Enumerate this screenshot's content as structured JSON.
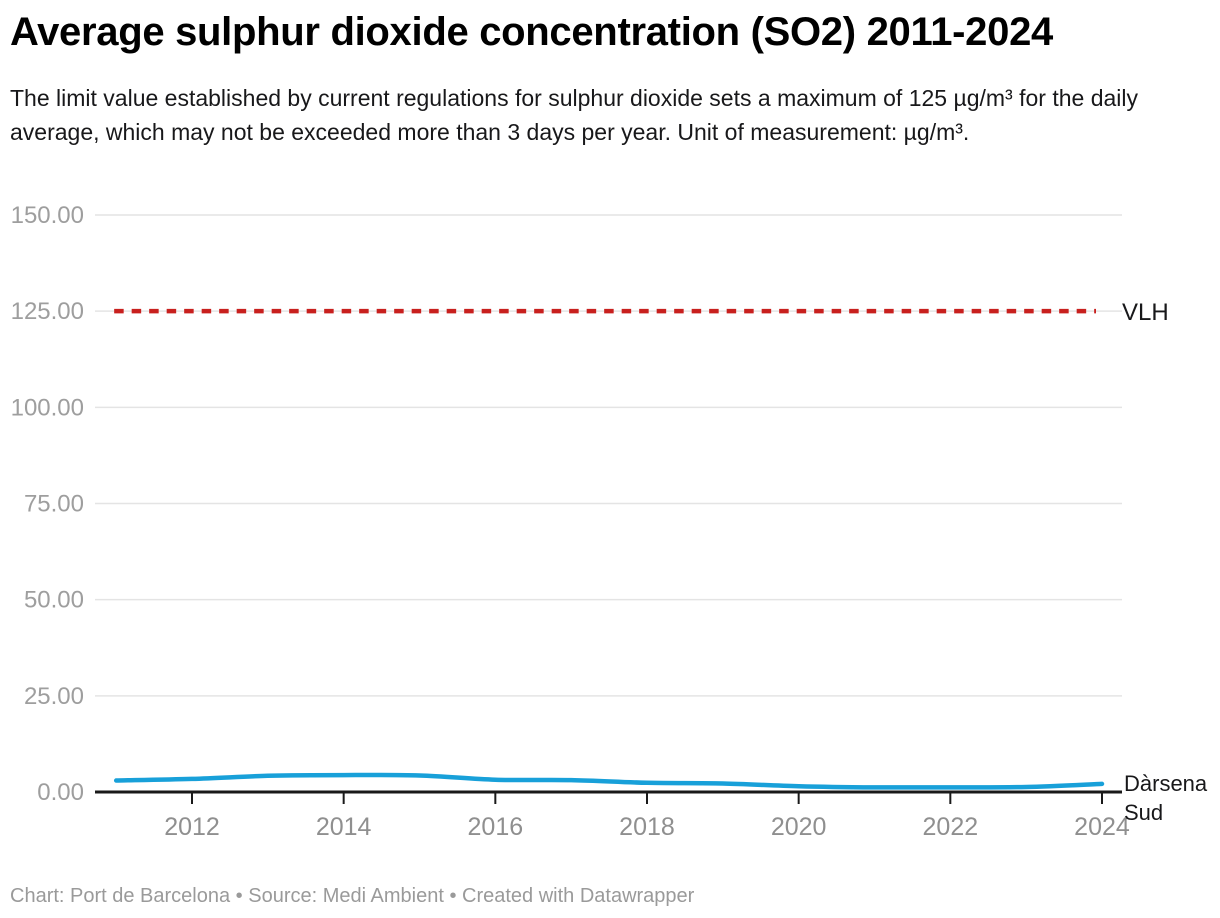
{
  "header": {
    "title": "Average sulphur dioxide concentration (SO2) 2011-2024",
    "description": "The limit value established by current regulations for sulphur dioxide sets a maximum of 125 µg/m³ for the daily average, which may not be exceeded more than 3 days per year. Unit of measurement: µg/m³."
  },
  "chart_data": {
    "type": "line",
    "title": "Average sulphur dioxide concentration (SO2) 2011-2024",
    "unit": "µg/m³",
    "x": [
      2011,
      2012,
      2013,
      2014,
      2015,
      2016,
      2017,
      2018,
      2019,
      2020,
      2021,
      2022,
      2023,
      2024
    ],
    "series": [
      {
        "name": "Dàrsena Sud",
        "color": "#18a0d9",
        "values": [
          3.0,
          3.4,
          4.2,
          4.4,
          4.3,
          3.2,
          3.1,
          2.4,
          2.2,
          1.5,
          1.2,
          1.2,
          1.3,
          2.1
        ]
      }
    ],
    "reference_line": {
      "label": "VLH",
      "value": 125,
      "color": "#c8201e",
      "style": "dashed"
    },
    "y_ticks": [
      {
        "value": 150,
        "label": "150.00"
      },
      {
        "value": 125,
        "label": "125.00"
      },
      {
        "value": 100,
        "label": "100.00"
      },
      {
        "value": 75,
        "label": "75.00"
      },
      {
        "value": 50,
        "label": "50.00"
      },
      {
        "value": 25,
        "label": "25.00"
      },
      {
        "value": 0,
        "label": "0.00"
      }
    ],
    "x_ticks": [
      {
        "value": 2012,
        "label": "2012"
      },
      {
        "value": 2014,
        "label": "2014"
      },
      {
        "value": 2016,
        "label": "2016"
      },
      {
        "value": 2018,
        "label": "2018"
      },
      {
        "value": 2020,
        "label": "2020"
      },
      {
        "value": 2022,
        "label": "2022"
      },
      {
        "value": 2024,
        "label": "2024"
      }
    ],
    "ylim": [
      0,
      150
    ],
    "xlim": [
      2011,
      2024
    ],
    "grid": "horizontal",
    "legend_position": "line-end"
  },
  "colors": {
    "axis": "#1a1a1a",
    "gridline": "#e4e4e4",
    "y_tick_label": "#9e9e9e",
    "x_tick_label": "#8f8f8f",
    "title": "#000000",
    "description": "#18181a",
    "annotation_text": "#18181a",
    "footer_text": "#9a9a9a"
  },
  "footer": {
    "text": "Chart: Port de Barcelona • Source: Medi Ambient • Created with Datawrapper"
  }
}
